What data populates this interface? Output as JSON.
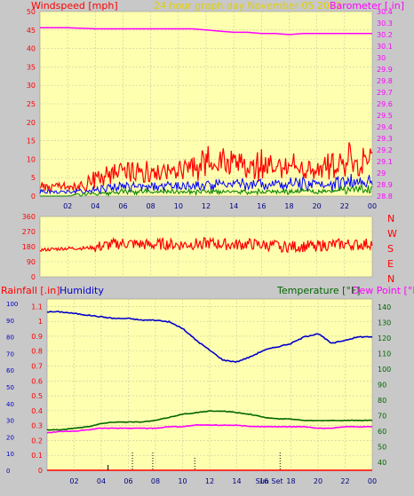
{
  "header": {
    "left_title": "Windspeed [mph]",
    "center_title": "24 hour graph day   November 05 2022",
    "right_title": "Barometer [.in]"
  },
  "compass": [
    "N",
    "W",
    "S",
    "E",
    "N"
  ],
  "lower_header": {
    "rainfall": "Rainfall [.in]",
    "humidity": "Humidity",
    "temperature": "Temperature [°F]",
    "dewpoint": "Dew Point [°F]"
  },
  "colors": {
    "plot_bg": "#ffffb0",
    "frame_bg": "#c8c8c8",
    "gust": "#ff0000",
    "avg": "#0000ff",
    "low": "#008000",
    "barometer": "#ff00ff",
    "direction": "#ff0000",
    "humidity": "#0000cc",
    "temperature": "#006600",
    "dewpoint": "#ff00ff",
    "rain": "#ff0000"
  },
  "chart_data": [
    {
      "type": "line",
      "name": "wind",
      "x_ticks": [
        "02",
        "04",
        "06",
        "08",
        "10",
        "12",
        "14",
        "16",
        "18",
        "20",
        "22",
        "00"
      ],
      "xlim": [
        0,
        24
      ],
      "ylabel": "Windspeed [mph]",
      "ylim": [
        0,
        50
      ],
      "y_ticks": [
        0,
        5,
        10,
        15,
        20,
        25,
        30,
        35,
        40,
        45,
        50
      ],
      "grid": true,
      "series": [
        {
          "name": "Gust",
          "color": "#ff0000",
          "x": [
            0,
            1,
            2,
            3,
            4,
            5,
            6,
            7,
            8,
            9,
            10,
            11,
            12,
            13,
            14,
            15,
            16,
            17,
            18,
            19,
            20,
            21,
            22,
            23,
            24
          ],
          "values": [
            3,
            3,
            3,
            3,
            4,
            6,
            7,
            7,
            6,
            7,
            7,
            8,
            9,
            9,
            8,
            8,
            8,
            8,
            7,
            7,
            7,
            8,
            9,
            9,
            10
          ],
          "max": [
            4,
            4,
            4,
            4,
            8,
            10,
            11,
            10,
            10,
            11,
            11,
            12,
            14,
            16,
            13,
            12,
            13,
            12,
            12,
            11,
            12,
            13,
            15,
            14,
            15
          ]
        },
        {
          "name": "Average",
          "color": "#0000ff",
          "x": [
            0,
            1,
            2,
            3,
            4,
            5,
            6,
            7,
            8,
            9,
            10,
            11,
            12,
            13,
            14,
            15,
            16,
            17,
            18,
            19,
            20,
            21,
            22,
            23,
            24
          ],
          "values": [
            1,
            1,
            1,
            1,
            1,
            2,
            2,
            2,
            2,
            2,
            2,
            2,
            3,
            3,
            3,
            3,
            3,
            3,
            3,
            2,
            2,
            3,
            3,
            3,
            3
          ],
          "max": [
            2,
            2,
            2,
            2,
            3,
            4,
            4,
            4,
            4,
            4,
            4,
            5,
            5,
            5,
            5,
            5,
            5,
            5,
            5,
            5,
            5,
            5,
            6,
            6,
            6
          ]
        },
        {
          "name": "Low",
          "color": "#008000",
          "x": [
            0,
            1,
            2,
            3,
            4,
            5,
            6,
            7,
            8,
            9,
            10,
            11,
            12,
            13,
            14,
            15,
            16,
            17,
            18,
            19,
            20,
            21,
            22,
            23,
            24
          ],
          "values": [
            0,
            0,
            0,
            0,
            0,
            0,
            1,
            1,
            1,
            1,
            1,
            1,
            1,
            1,
            1,
            1,
            1,
            1,
            1,
            1,
            1,
            1,
            1,
            1,
            1
          ],
          "max": [
            0,
            0,
            0,
            1,
            1,
            1,
            2,
            2,
            2,
            2,
            2,
            2,
            2,
            2,
            2,
            2,
            2,
            2,
            2,
            2,
            2,
            2,
            3,
            3,
            3
          ]
        }
      ]
    },
    {
      "type": "line",
      "name": "barometer",
      "ylabel": "Barometer [.in]",
      "ylim": [
        28.8,
        30.4
      ],
      "y_ticks": [
        "28.8",
        "28.9",
        "29",
        "29.1",
        "29.2",
        "29.3",
        "29.4",
        "29.5",
        "29.6",
        "29.7",
        "29.8",
        "29.9",
        "30",
        "30.1",
        "30.2",
        "30.3",
        "30.4"
      ],
      "series": [
        {
          "name": "Barometer",
          "color": "#ff00ff",
          "x": [
            0,
            2,
            4,
            6,
            8,
            10,
            11,
            12,
            13,
            14,
            15,
            16,
            17,
            18,
            19,
            20,
            21,
            22,
            23,
            24
          ],
          "values": [
            30.26,
            30.26,
            30.25,
            30.25,
            30.25,
            30.25,
            30.25,
            30.24,
            30.23,
            30.22,
            30.22,
            30.21,
            30.21,
            30.2,
            30.21,
            30.21,
            30.21,
            30.21,
            30.21,
            30.21
          ]
        }
      ]
    },
    {
      "type": "scatter",
      "name": "wind_direction",
      "ylim": [
        0,
        360
      ],
      "y_ticks": [
        0,
        90,
        180,
        270,
        360
      ],
      "series": [
        {
          "name": "Direction",
          "color": "#ff0000",
          "x": [
            0,
            1,
            2,
            3,
            4,
            5,
            6,
            7,
            8,
            9,
            10,
            11,
            12,
            13,
            14,
            15,
            16,
            17,
            18,
            19,
            20,
            21,
            22,
            23,
            24
          ],
          "values": [
            160,
            165,
            170,
            170,
            175,
            190,
            200,
            195,
            190,
            195,
            190,
            195,
            200,
            195,
            190,
            195,
            190,
            185,
            180,
            180,
            185,
            190,
            195,
            190,
            200
          ]
        }
      ]
    },
    {
      "type": "line",
      "name": "humidity_temperature",
      "x_ticks": [
        "02",
        "04",
        "06",
        "08",
        "10",
        "12",
        "14",
        "16",
        "18",
        "20",
        "22",
        "00"
      ],
      "xlim": [
        0,
        24
      ],
      "humidity_y_ticks": [
        0,
        10,
        20,
        30,
        40,
        50,
        60,
        70,
        80,
        90,
        100
      ],
      "rain_y_ticks": [
        "0",
        "0.1",
        "0.2",
        "0.3",
        "0.4",
        "0.5",
        "0.6",
        "0.7",
        "0.8",
        "0.9",
        "1",
        "1.1"
      ],
      "temp_y_ticks": [
        40,
        50,
        60,
        70,
        80,
        90,
        100,
        110,
        120,
        130,
        140
      ],
      "annotation": "Sun Set",
      "series": [
        {
          "name": "Humidity",
          "axis": "humidity",
          "color": "#0000cc",
          "x": [
            0,
            1,
            2,
            3,
            4,
            5,
            6,
            7,
            8,
            9,
            10,
            11,
            12,
            13,
            14,
            15,
            16,
            17,
            18,
            19,
            20,
            21,
            22,
            23,
            24
          ],
          "values": [
            95,
            95,
            94,
            93,
            92,
            91,
            91,
            90,
            90,
            89,
            85,
            78,
            72,
            66,
            65,
            68,
            72,
            74,
            76,
            80,
            82,
            76,
            78,
            80,
            80
          ]
        },
        {
          "name": "Temperature",
          "axis": "temperature",
          "color": "#006600",
          "x": [
            0,
            1,
            2,
            3,
            4,
            5,
            6,
            7,
            8,
            9,
            10,
            11,
            12,
            13,
            14,
            15,
            16,
            17,
            18,
            19,
            20,
            21,
            22,
            23,
            24
          ],
          "values": [
            61,
            61,
            62,
            63,
            65,
            66,
            66,
            66,
            67,
            69,
            71,
            72,
            73,
            73,
            72,
            71,
            69,
            68,
            68,
            67,
            67,
            67,
            67,
            67,
            67
          ]
        },
        {
          "name": "Dew Point",
          "axis": "temperature",
          "color": "#ff00ff",
          "x": [
            0,
            1,
            2,
            3,
            4,
            5,
            6,
            7,
            8,
            9,
            10,
            11,
            12,
            13,
            14,
            15,
            16,
            17,
            18,
            19,
            20,
            21,
            22,
            23,
            24
          ],
          "values": [
            59,
            60,
            60,
            61,
            62,
            62,
            62,
            62,
            62,
            63,
            63,
            64,
            64,
            64,
            64,
            63,
            63,
            63,
            63,
            63,
            62,
            62,
            63,
            63,
            63
          ]
        },
        {
          "name": "Rainfall",
          "axis": "rain",
          "color": "#ff0000",
          "x": [
            0,
            24
          ],
          "values": [
            0,
            0
          ]
        }
      ]
    }
  ]
}
